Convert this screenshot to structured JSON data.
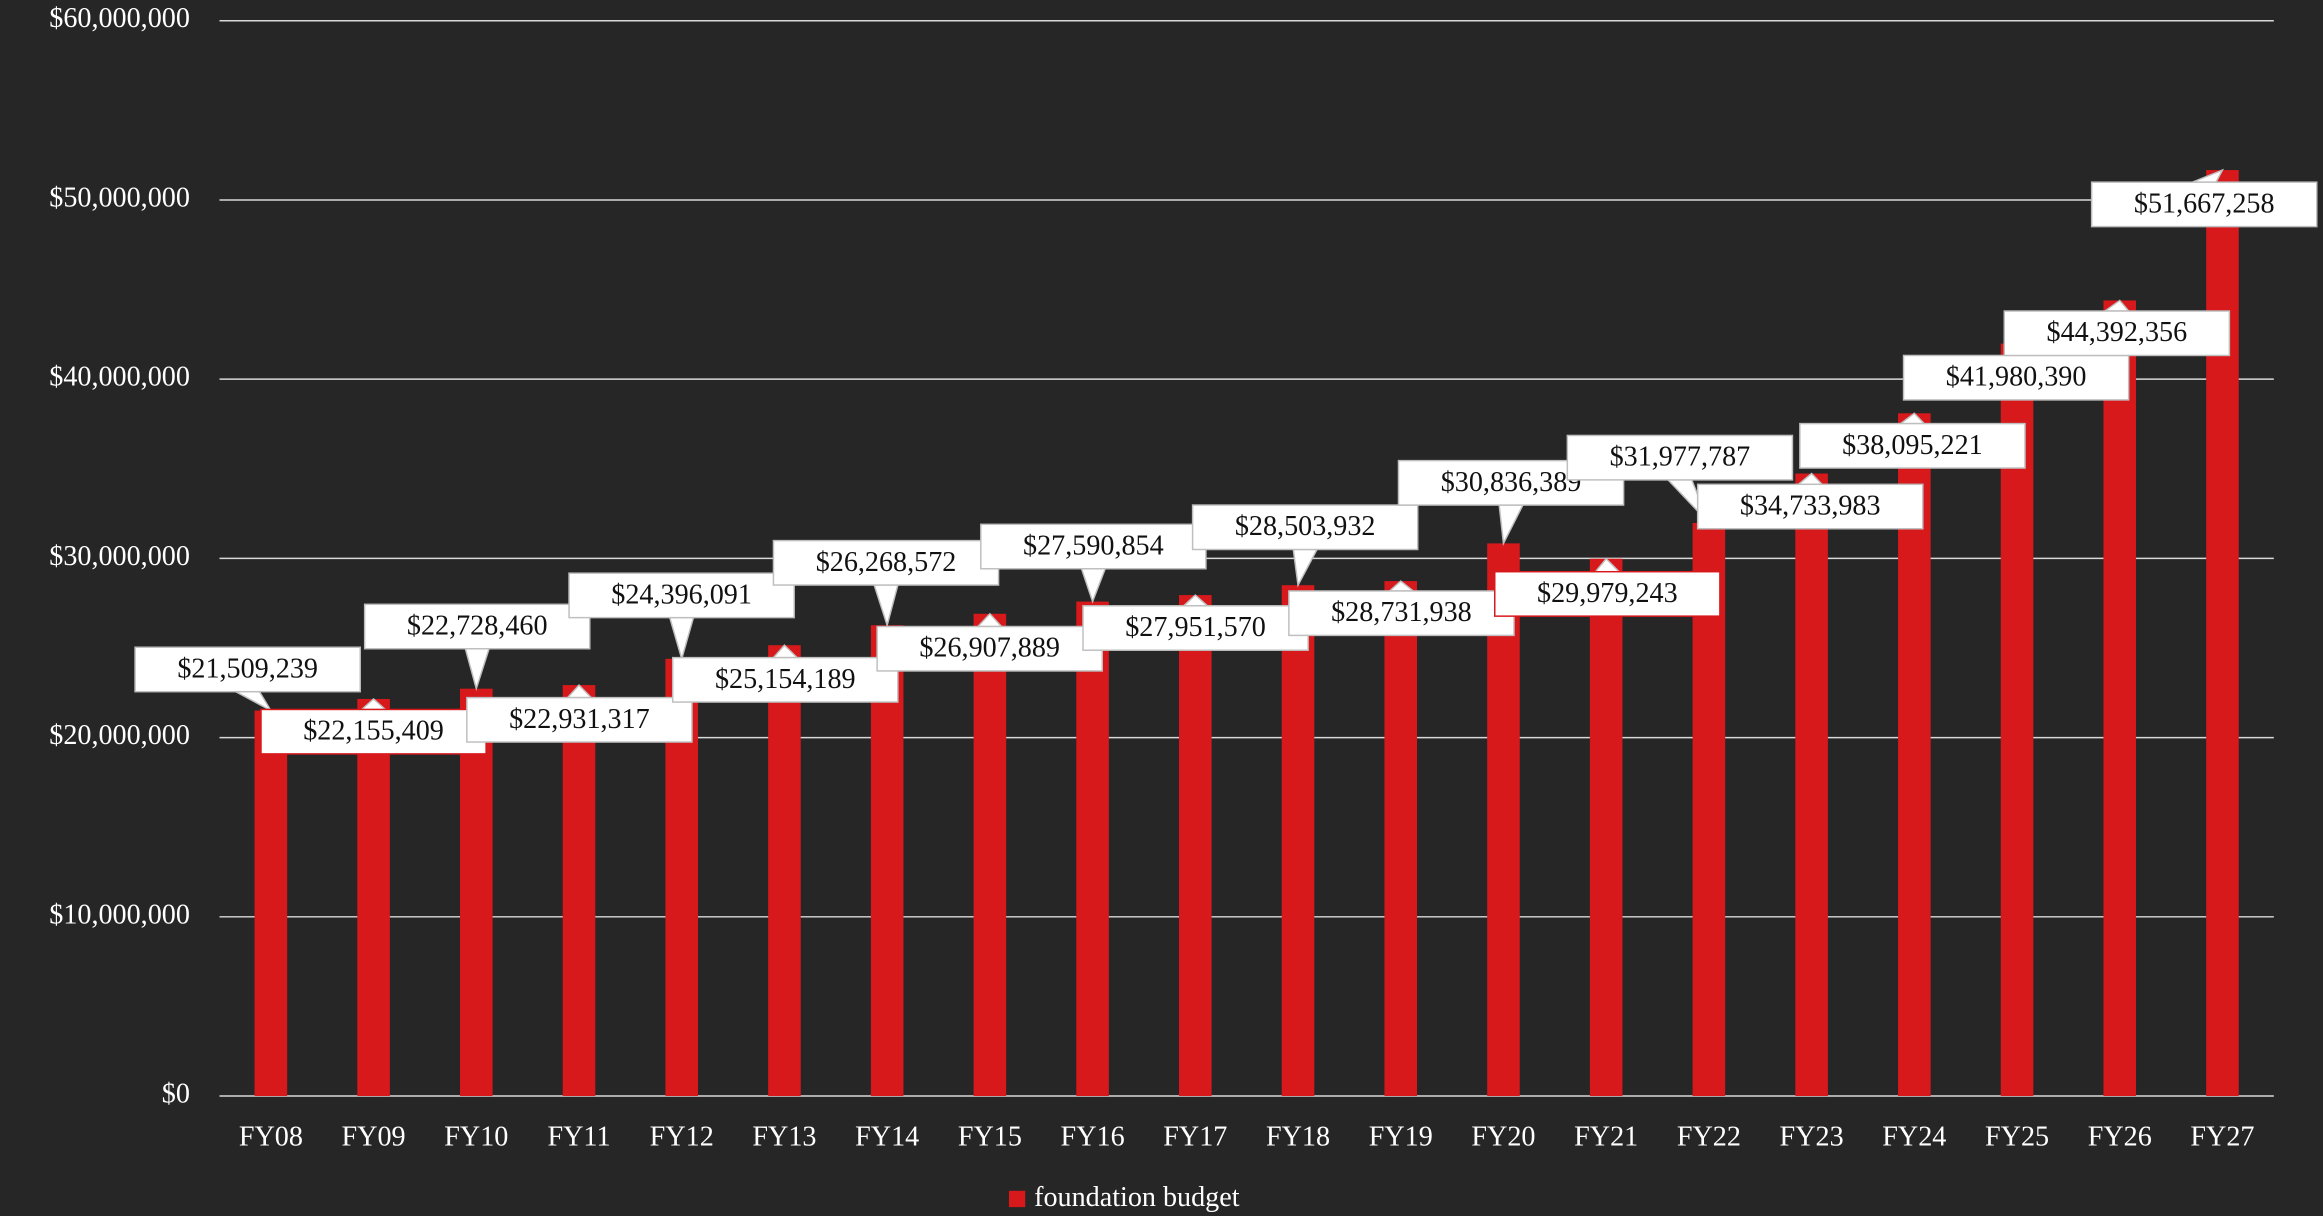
{
  "chart_data": {
    "type": "bar",
    "categories": [
      "FY08",
      "FY09",
      "FY10",
      "FY11",
      "FY12",
      "FY13",
      "FY14",
      "FY15",
      "FY16",
      "FY17",
      "FY18",
      "FY19",
      "FY20",
      "FY21",
      "FY22",
      "FY23",
      "FY24",
      "FY25",
      "FY26",
      "FY27"
    ],
    "series": [
      {
        "name": "foundation budget",
        "color": "#d7191c",
        "values": [
          21509239,
          22155409,
          22728460,
          22931317,
          24396091,
          25154189,
          26268572,
          26907889,
          27590854,
          27951570,
          28503932,
          28731938,
          30836389,
          29979243,
          31977787,
          34733983,
          38095221,
          41980390,
          44392356,
          51667258
        ],
        "value_labels": [
          "$21,509,239",
          "$22,155,409",
          "$22,728,460",
          "$22,931,317",
          "$24,396,091",
          "$25,154,189",
          "$26,268,572",
          "$26,907,889",
          "$27,590,854",
          "$27,951,570",
          "$28,503,932",
          "$28,731,938",
          "$30,836,389",
          "$29,979,243",
          "$31,977,787",
          "$34,733,983",
          "$38,095,221",
          "$41,980,390",
          "$44,392,356",
          "$51,667,258"
        ]
      }
    ],
    "ylim": [
      0,
      60000000
    ],
    "yticks": [
      {
        "value": 0,
        "label": "$0"
      },
      {
        "value": 10000000,
        "label": "$10,000,000"
      },
      {
        "value": 20000000,
        "label": "$20,000,000"
      },
      {
        "value": 30000000,
        "label": "$30,000,000"
      },
      {
        "value": 40000000,
        "label": "$40,000,000"
      },
      {
        "value": 50000000,
        "label": "$50,000,000"
      },
      {
        "value": 60000000,
        "label": "$60,000,000"
      }
    ],
    "grid": true,
    "legend": "bottom"
  }
}
